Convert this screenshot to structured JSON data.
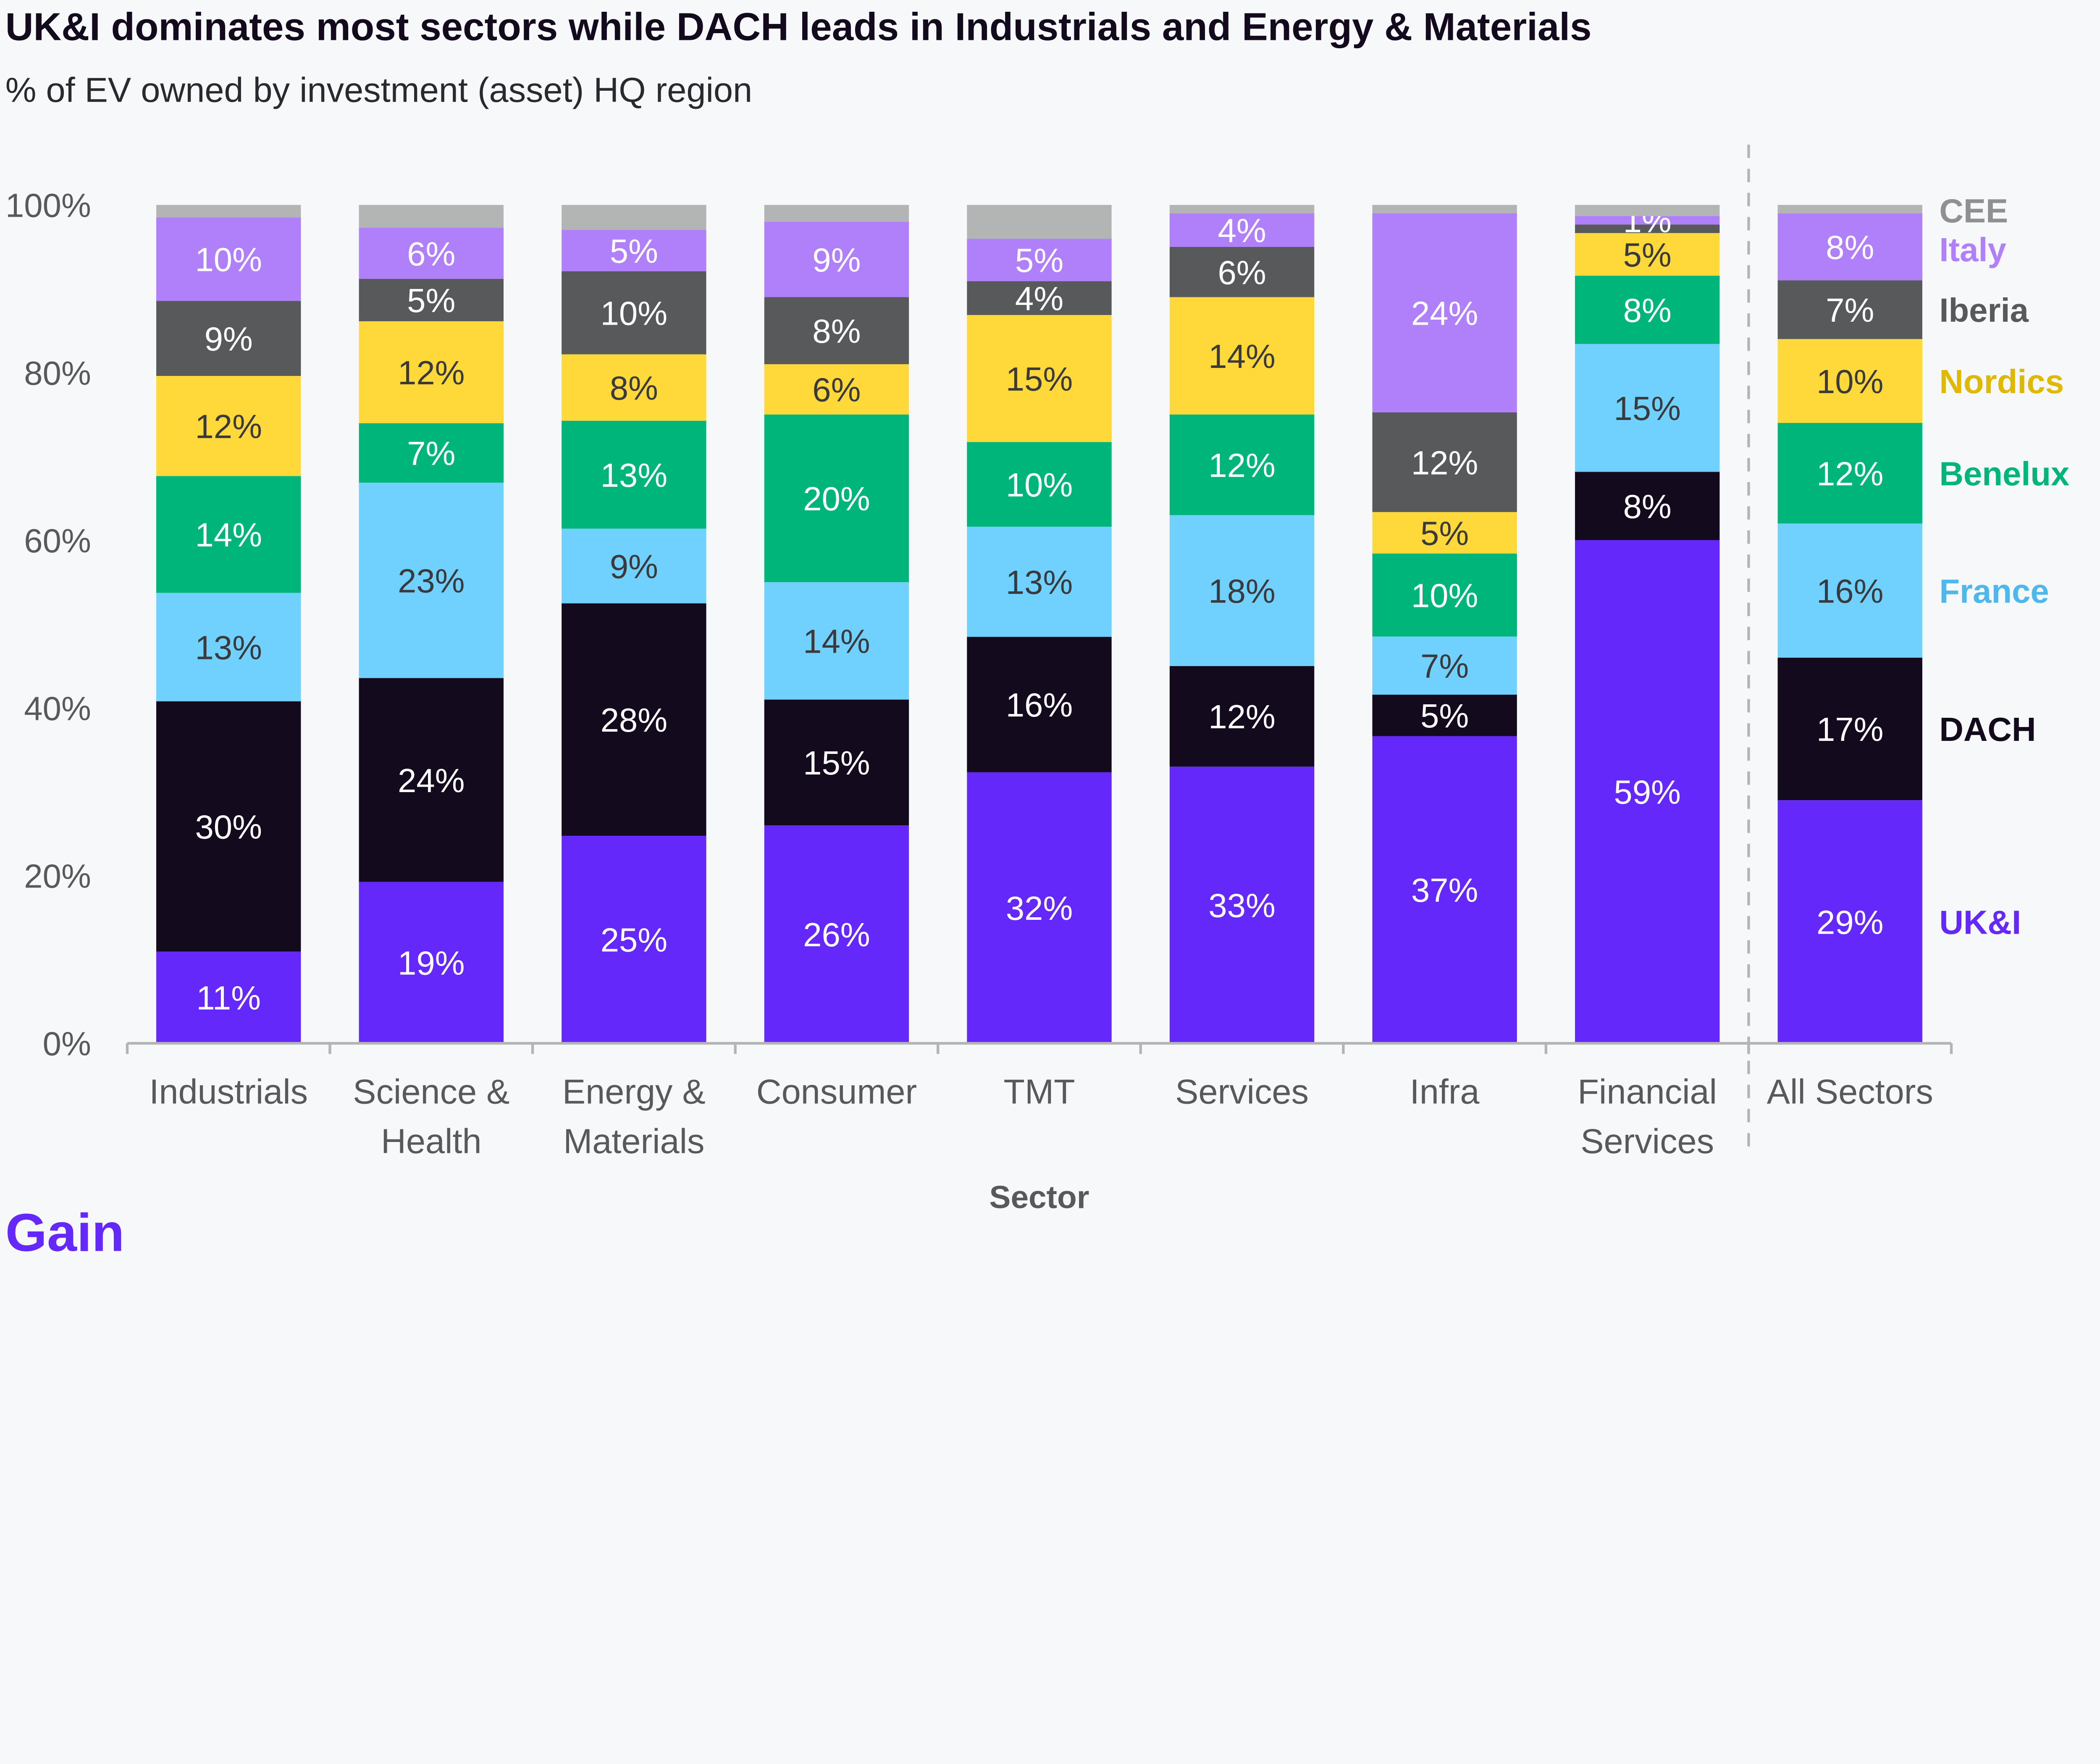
{
  "title": "UK&I dominates most sectors while DACH leads in Industrials and Energy & Materials",
  "subtitle": "% of EV owned by investment (asset) HQ region",
  "logo": "Gain",
  "colors": {
    "background": "#F7F8FA",
    "brand": "#6429FA"
  },
  "chart_data": {
    "type": "bar",
    "stacked": true,
    "xlabel": "Sector",
    "ylabel": "",
    "ylim": [
      0,
      100
    ],
    "yticks": [
      "0%",
      "20%",
      "40%",
      "60%",
      "80%",
      "100%"
    ],
    "ytick_values": [
      0,
      20,
      40,
      60,
      80,
      100
    ],
    "grid": false,
    "legend_placement": "right, inline labels",
    "categories": [
      [
        "Industrials"
      ],
      [
        "Science &",
        "Health"
      ],
      [
        "Energy &",
        "Materials"
      ],
      [
        "Consumer"
      ],
      [
        "TMT"
      ],
      [
        "Services"
      ],
      [
        "Infra"
      ],
      [
        "Financial",
        "Services"
      ],
      [
        "All Sectors"
      ]
    ],
    "separator_before_category": "All Sectors",
    "series": [
      {
        "name": "UK&I",
        "color": "#6429FA",
        "legend_color": "#6429FA",
        "label_color": "#FFFFFF",
        "values": [
          11,
          19,
          25,
          26,
          32,
          33,
          37,
          59,
          29
        ],
        "labels": [
          "11%",
          "19%",
          "25%",
          "26%",
          "32%",
          "33%",
          "37%",
          "59%",
          "29%"
        ]
      },
      {
        "name": "DACH",
        "color": "#140A1E",
        "legend_color": "#140A1E",
        "label_color": "#FFFFFF",
        "values": [
          30,
          24,
          28,
          15,
          16,
          12,
          5,
          8,
          17
        ],
        "labels": [
          "30%",
          "24%",
          "28%",
          "15%",
          "16%",
          "12%",
          "5%",
          "8%",
          "17%"
        ]
      },
      {
        "name": "France",
        "color": "#70D1FF",
        "legend_color": "#4DB8EB",
        "label_color": "#3A3A3C",
        "values": [
          13,
          23,
          9,
          14,
          13,
          18,
          7,
          15,
          16
        ],
        "labels": [
          "13%",
          "23%",
          "9%",
          "14%",
          "13%",
          "18%",
          "7%",
          "15%",
          "16%"
        ]
      },
      {
        "name": "Benelux",
        "color": "#00B57A",
        "legend_color": "#00B57A",
        "label_color": "#FFFFFF",
        "values": [
          14,
          7,
          13,
          20,
          10,
          12,
          10,
          8,
          12
        ],
        "labels": [
          "14%",
          "7%",
          "13%",
          "20%",
          "10%",
          "12%",
          "10%",
          "8%",
          "12%"
        ]
      },
      {
        "name": "Nordics",
        "color": "#FFD83A",
        "legend_color": "#E0B800",
        "label_color": "#3A3A3C",
        "values": [
          12,
          12,
          8,
          6,
          15,
          14,
          5,
          5,
          10
        ],
        "labels": [
          "12%",
          "12%",
          "8%",
          "6%",
          "15%",
          "14%",
          "5%",
          "5%",
          "10%"
        ]
      },
      {
        "name": "Iberia",
        "color": "#58595B",
        "legend_color": "#58595B",
        "label_color": "#FFFFFF",
        "values": [
          9,
          5,
          10,
          8,
          4,
          6,
          12,
          1,
          7
        ],
        "labels": [
          "9%",
          "5%",
          "10%",
          "8%",
          "4%",
          "6%",
          "12%",
          null,
          "7%"
        ]
      },
      {
        "name": "Italy",
        "color": "#B07FFA",
        "legend_color": "#B07FFA",
        "label_color": "#FFFFFF",
        "values": [
          10,
          6,
          5,
          9,
          5,
          4,
          24,
          1,
          8
        ],
        "labels": [
          "10%",
          "6%",
          "5%",
          "9%",
          "5%",
          "4%",
          "24%",
          "1%",
          "8%"
        ]
      },
      {
        "name": "CEE",
        "color": "#B3B5B5",
        "legend_color": "#8F9091",
        "label_color": "#FFFFFF",
        "values": [
          1.5,
          2.7,
          3,
          2,
          4,
          1,
          1,
          1.3,
          1
        ],
        "labels": [
          null,
          null,
          null,
          null,
          null,
          null,
          null,
          null,
          null
        ]
      }
    ]
  }
}
